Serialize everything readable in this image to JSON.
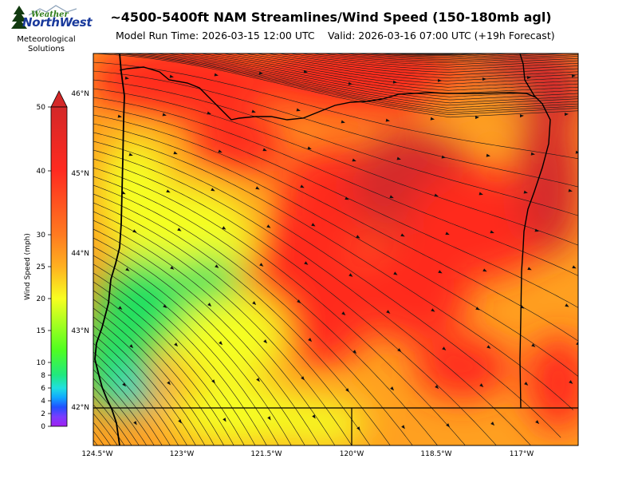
{
  "header": {
    "title": "~4500-5400ft NAM Streamlines/Wind Speed (150-180mb agl)",
    "model_run": "Model Run Time: 2026-03-15 12:00 UTC",
    "valid": "Valid: 2026-03-16 07:00 UTC  (+19h Forecast)"
  },
  "logo": {
    "line1": "Weather",
    "line2": "NorthWest",
    "subtitle_line1": "Meteorological",
    "subtitle_line2": "Solutions"
  },
  "colorbar": {
    "title": "Wind Speed (mph)",
    "ticks": [
      "0",
      "2",
      "4",
      "6",
      "8",
      "10",
      "15",
      "20",
      "25",
      "30",
      "40",
      "50"
    ]
  },
  "map": {
    "lat_labels": [
      "46°N",
      "45°N",
      "44°N",
      "43°N",
      "42°N"
    ],
    "lon_labels": [
      "124.5°W",
      "123°W",
      "121.5°W",
      "120°W",
      "118.5°W",
      "117°W"
    ],
    "colors": {
      "calm": "#3fd8f0",
      "light": "#22e060",
      "moderate": "#f5ff20",
      "fresh": "#ffa020",
      "strong": "#ff2a1c",
      "very_strong": "#d42a2a"
    }
  }
}
